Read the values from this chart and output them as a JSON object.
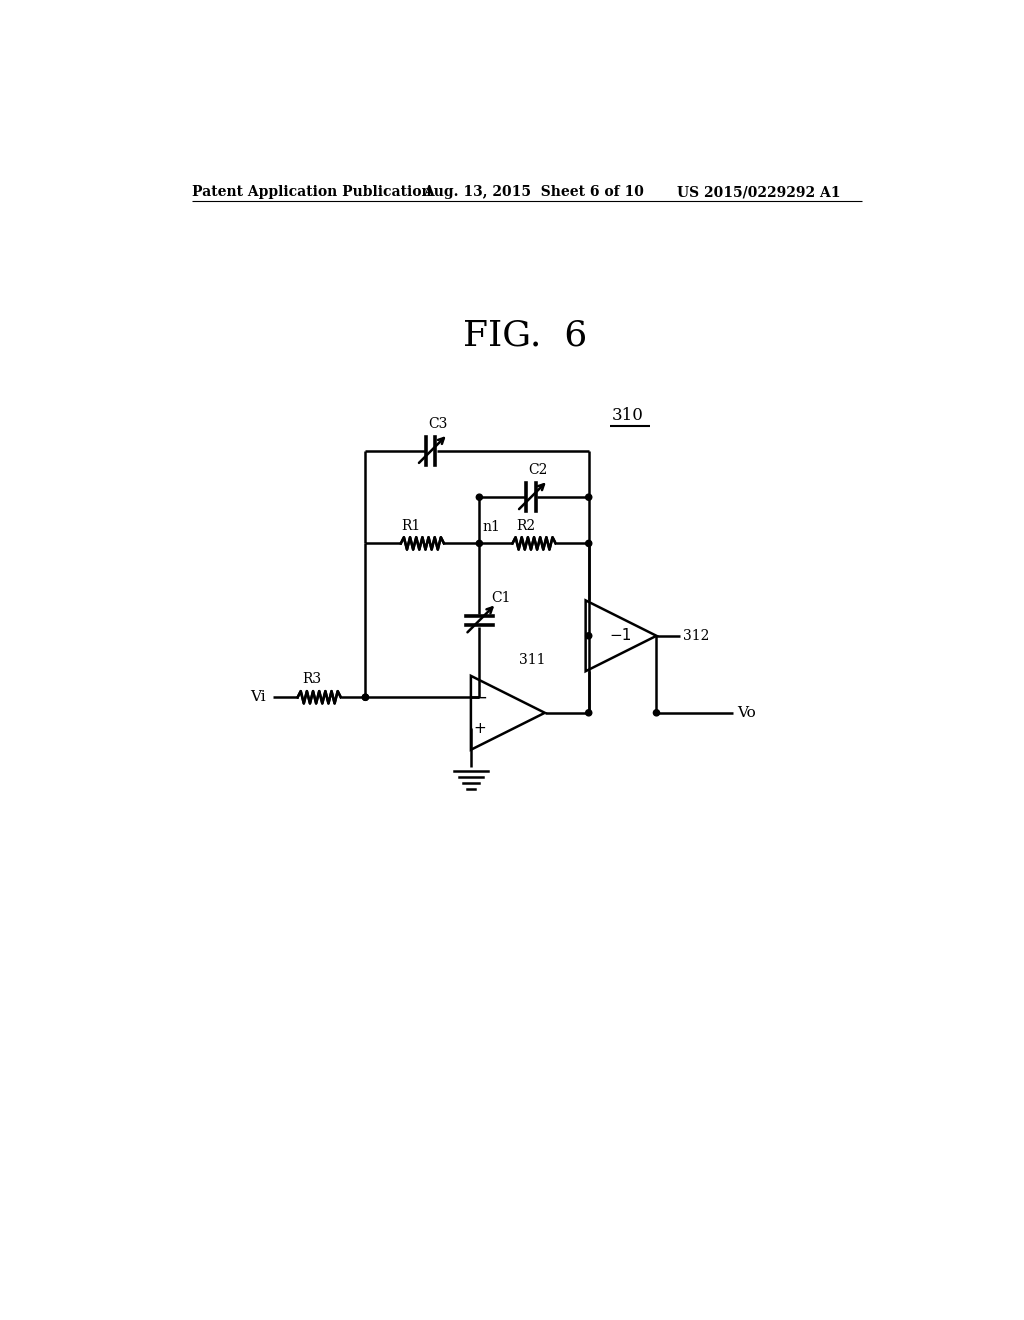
{
  "title": "FIG.  6",
  "header_left": "Patent Application Publication",
  "header_mid": "Aug. 13, 2015  Sheet 6 of 10",
  "header_right": "US 2015/0229292 A1",
  "label_310": "310",
  "label_311": "311",
  "label_312": "312",
  "label_Vi": "Vi",
  "label_Vo": "Vo",
  "label_n1": "n1",
  "label_R1": "R1",
  "label_R2": "R2",
  "label_R3": "R3",
  "label_C1": "C1",
  "label_C2": "C2",
  "label_C3": "C3",
  "label_minus1": "-1",
  "bg_color": "#ffffff",
  "line_color": "#000000"
}
